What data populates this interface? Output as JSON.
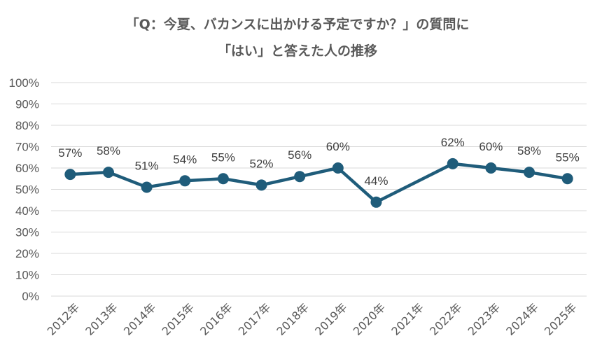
{
  "chart_data": {
    "type": "line",
    "title_line1": "「Q：今夏、バカンスに出かける予定ですか？」の質問に",
    "title_line2": "「はい」と答えた人の推移",
    "categories": [
      "2012年",
      "2013年",
      "2014年",
      "2015年",
      "2016年",
      "2017年",
      "2018年",
      "2019年",
      "2020年",
      "2021年",
      "2022年",
      "2023年",
      "2024年",
      "2025年"
    ],
    "series": [
      {
        "values": [
          57,
          58,
          51,
          54,
          55,
          52,
          56,
          60,
          44,
          null,
          62,
          60,
          58,
          55
        ],
        "labels": [
          "57%",
          "58%",
          "51%",
          "54%",
          "55%",
          "52%",
          "56%",
          "60%",
          "44%",
          "",
          "62%",
          "60%",
          "58%",
          "55%"
        ],
        "color": "#1f5c7a"
      }
    ],
    "y_ticks": [
      "0%",
      "10%",
      "20%",
      "30%",
      "40%",
      "50%",
      "60%",
      "70%",
      "80%",
      "90%",
      "100%"
    ],
    "ylim": [
      0,
      100
    ],
    "grid": true,
    "gridline_color": "#d9d9d9"
  }
}
